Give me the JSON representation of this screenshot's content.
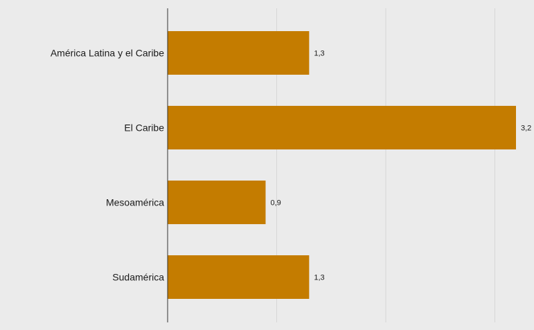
{
  "chart_data": {
    "type": "bar",
    "orientation": "horizontal",
    "categories": [
      "América Latina y el Caribe",
      "El Caribe",
      "Mesoamérica",
      "Sudamérica"
    ],
    "values": [
      1.3,
      3.2,
      0.9,
      1.3
    ],
    "value_labels": [
      "1,3",
      "3,2",
      "0,9",
      "1,3"
    ],
    "title": "",
    "xlabel": "",
    "ylabel": "",
    "xlim": [
      0,
      3.2
    ],
    "grid": "vertical",
    "legend": "none",
    "colors": {
      "bar": "#c47c00",
      "background": "#ebebeb",
      "grid": "#d6d6d6",
      "axis": "#333333"
    }
  }
}
